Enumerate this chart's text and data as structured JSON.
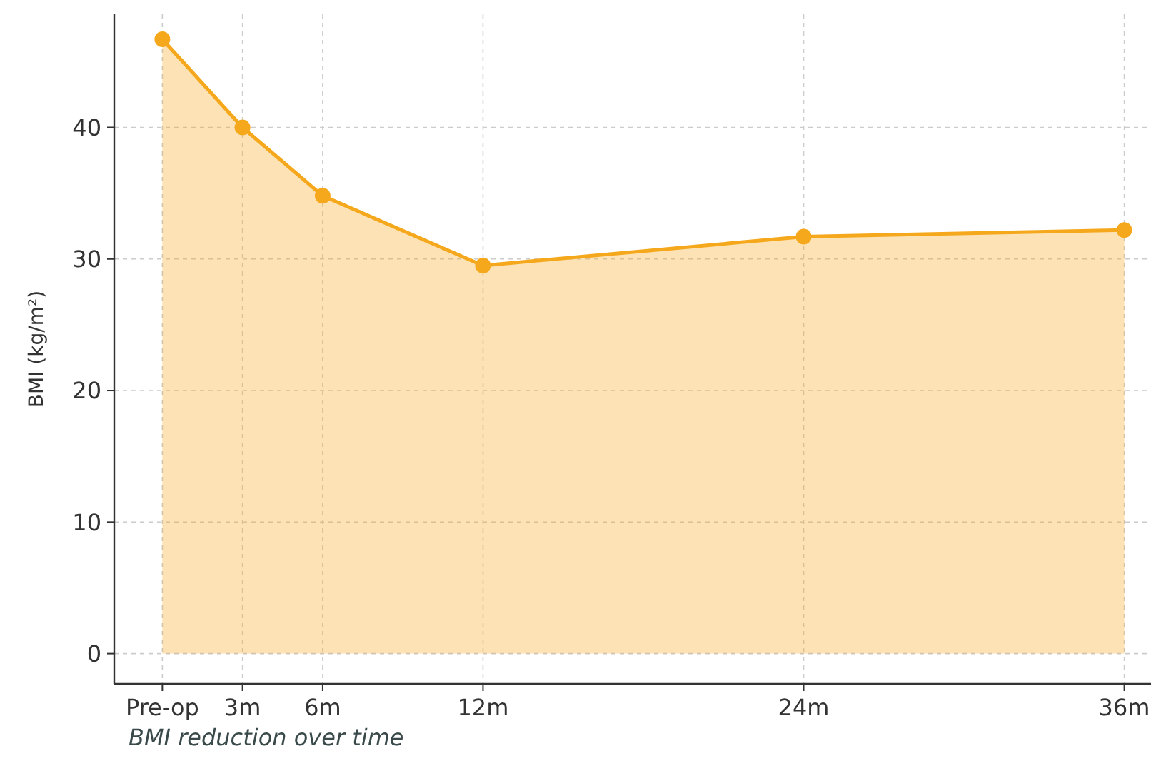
{
  "chart_data": {
    "type": "area",
    "ylabel": "BMI (kg/m²)",
    "annotations": [
      "BMI reduction over time"
    ],
    "x": [
      0,
      3,
      6,
      12,
      24,
      36
    ],
    "series": [
      {
        "color": "#f5a81c",
        "values": [
          46.7,
          40.0,
          34.8,
          29.5,
          31.7,
          32.2
        ]
      }
    ],
    "xlim": [
      -1.8,
      37
    ],
    "xticks": [
      {
        "value": 0,
        "label": "Pre-op"
      },
      {
        "value": 3,
        "label": "3m"
      },
      {
        "value": 6,
        "label": "6m"
      },
      {
        "value": 12,
        "label": "12m"
      },
      {
        "value": 24,
        "label": "24m"
      },
      {
        "value": 36,
        "label": "36m"
      }
    ],
    "ylim": [
      -2.3,
      48.6
    ],
    "yticks": [
      0,
      10,
      20,
      30,
      40
    ],
    "grid": true,
    "marker": "circle"
  }
}
